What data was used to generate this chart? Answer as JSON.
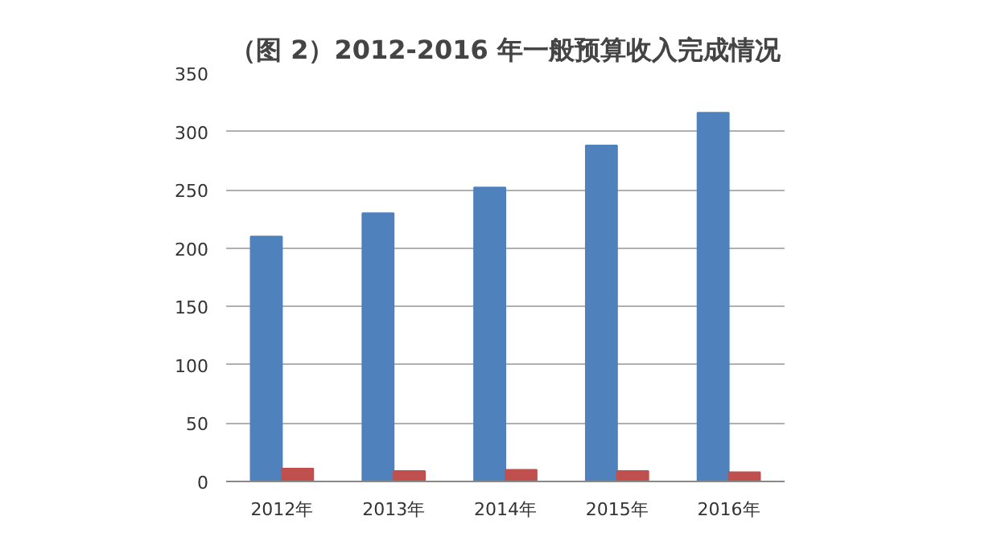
{
  "chart_data": {
    "type": "bar",
    "title": "（图 2）2012-2016 年一般预算收入完成情况",
    "categories": [
      "2012年",
      "2013年",
      "2014年",
      "2015年",
      "2016年"
    ],
    "series": [
      {
        "color": "#4f81bd",
        "values": [
          210,
          230,
          252,
          288,
          316
        ]
      },
      {
        "color": "#c0504d",
        "values": [
          11,
          9,
          10,
          9,
          8
        ]
      }
    ],
    "ylim": [
      0,
      350
    ],
    "yticks": [
      0,
      50,
      100,
      150,
      200,
      250,
      300,
      350
    ],
    "grid": "y"
  }
}
